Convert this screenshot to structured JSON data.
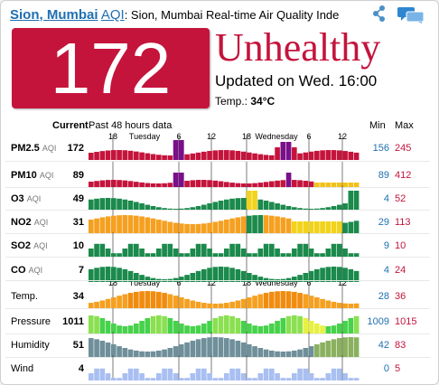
{
  "header": {
    "city": "Sion, Mumbai",
    "aqi_word": "AQI",
    "subtitle": ": Sion, Mumbai Real-time Air Quality Inde"
  },
  "aqi": {
    "value": "172",
    "status": "Unhealthy",
    "color": "#c4143c"
  },
  "updated": "Updated on Wed. 16:00",
  "temp": {
    "label": "Temp.:",
    "value": "34°C"
  },
  "table": {
    "current_label": "Current",
    "past_label": "Past 48 hours data",
    "min_label": "Min",
    "max_label": "Max",
    "axis_ticks": [
      "18",
      "Tuesday",
      "6",
      "12",
      "18",
      "Wednesday",
      "6",
      "12"
    ]
  },
  "rows": [
    {
      "id": "pm25",
      "label": "PM2.5",
      "unit": "AQI",
      "current": "172",
      "min": "156",
      "max": "245"
    },
    {
      "id": "pm10",
      "label": "PM10",
      "unit": "AQI",
      "current": "89",
      "min": "89",
      "max": "412"
    },
    {
      "id": "o3",
      "label": "O3",
      "unit": "AQI",
      "current": "49",
      "min": "4",
      "max": "52"
    },
    {
      "id": "no2",
      "label": "NO2",
      "unit": "AQI",
      "current": "31",
      "min": "29",
      "max": "113"
    },
    {
      "id": "so2",
      "label": "SO2",
      "unit": "AQI",
      "current": "10",
      "min": "9",
      "max": "10"
    },
    {
      "id": "co",
      "label": "CO",
      "unit": "AQI",
      "current": "7",
      "min": "4",
      "max": "24"
    },
    {
      "id": "temp",
      "label": "Temp.",
      "unit": "",
      "current": "34",
      "min": "28",
      "max": "36"
    },
    {
      "id": "pressure",
      "label": "Pressure",
      "unit": "",
      "current": "1011",
      "min": "1009",
      "max": "1015"
    },
    {
      "id": "humidity",
      "label": "Humidity",
      "unit": "",
      "current": "51",
      "min": "42",
      "max": "83"
    },
    {
      "id": "wind",
      "label": "Wind",
      "unit": "",
      "current": "4",
      "min": "0",
      "max": "5"
    }
  ],
  "icons": {
    "share": "share-icon",
    "chat": "chat-bubbles-icon"
  }
}
